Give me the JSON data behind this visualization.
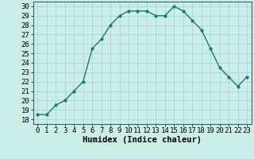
{
  "x": [
    0,
    1,
    2,
    3,
    4,
    5,
    6,
    7,
    8,
    9,
    10,
    11,
    12,
    13,
    14,
    15,
    16,
    17,
    18,
    19,
    20,
    21,
    22,
    23
  ],
  "y": [
    18.5,
    18.5,
    19.5,
    20.0,
    21.0,
    22.0,
    25.5,
    26.5,
    28.0,
    29.0,
    29.5,
    29.5,
    29.5,
    29.0,
    29.0,
    30.0,
    29.5,
    28.5,
    27.5,
    25.5,
    23.5,
    22.5,
    21.5,
    22.5
  ],
  "line_color": "#1a7a6e",
  "marker": "o",
  "marker_size": 2,
  "bg_color": "#cceee8",
  "grid_color": "#a8d8d0",
  "xlabel": "Humidex (Indice chaleur)",
  "xlim": [
    -0.5,
    23.5
  ],
  "ylim": [
    17.5,
    30.5
  ],
  "yticks": [
    18,
    19,
    20,
    21,
    22,
    23,
    24,
    25,
    26,
    27,
    28,
    29,
    30
  ],
  "xticks": [
    0,
    1,
    2,
    3,
    4,
    5,
    6,
    7,
    8,
    9,
    10,
    11,
    12,
    13,
    14,
    15,
    16,
    17,
    18,
    19,
    20,
    21,
    22,
    23
  ],
  "xlabel_fontsize": 7.5,
  "tick_fontsize": 6.5,
  "line_width": 1.0
}
